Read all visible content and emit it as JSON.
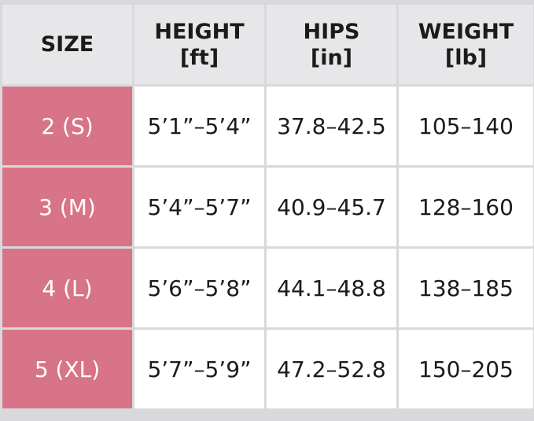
{
  "colors": {
    "header_bg": "#e7e7e9",
    "size_bg": "#d87487",
    "border": "#d9d9db"
  },
  "headers": [
    {
      "label": "SIZE",
      "unit": ""
    },
    {
      "label": "HEIGHT",
      "unit": "[ft]"
    },
    {
      "label": "HIPS",
      "unit": "[in]"
    },
    {
      "label": "WEIGHT",
      "unit": "[lb]"
    }
  ],
  "rows": [
    [
      "2 (S)",
      "5’1”–5’4”",
      "37.8–42.5",
      "105–140"
    ],
    [
      "3 (M)",
      "5’4”–5’7”",
      "40.9–45.7",
      "128–160"
    ],
    [
      "4 (L)",
      "5’6”–5’8”",
      "44.1–48.8",
      "138–185"
    ],
    [
      "5 (XL)",
      "5’7”–5’9”",
      "47.2–52.8",
      "150–205"
    ]
  ]
}
